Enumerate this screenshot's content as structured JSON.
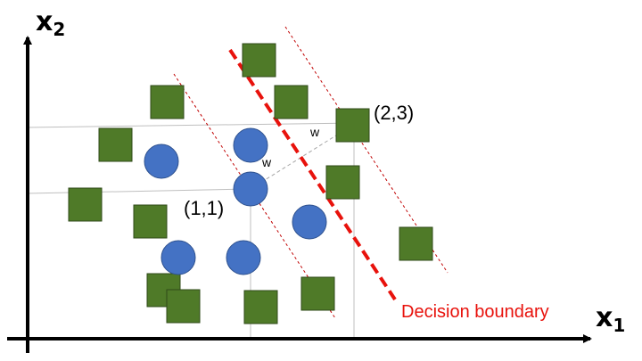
{
  "axes": {
    "x_label": "x",
    "x_subscript": "1",
    "y_label": "x",
    "y_subscript": "2"
  },
  "points": {
    "a_label": "(1,1)",
    "b_label": "(2,3)"
  },
  "margin_labels": [
    "w",
    "w"
  ],
  "decision_boundary": {
    "label": "Decision boundary",
    "color": "#e8120c"
  },
  "colors": {
    "square_fill": "#4f7a28",
    "square_stroke": "#2f4a19",
    "circle_fill": "#4472c4",
    "circle_stroke": "#2f528f",
    "margin_line": "#c00000",
    "guide_line": "#bfbfbf"
  }
}
